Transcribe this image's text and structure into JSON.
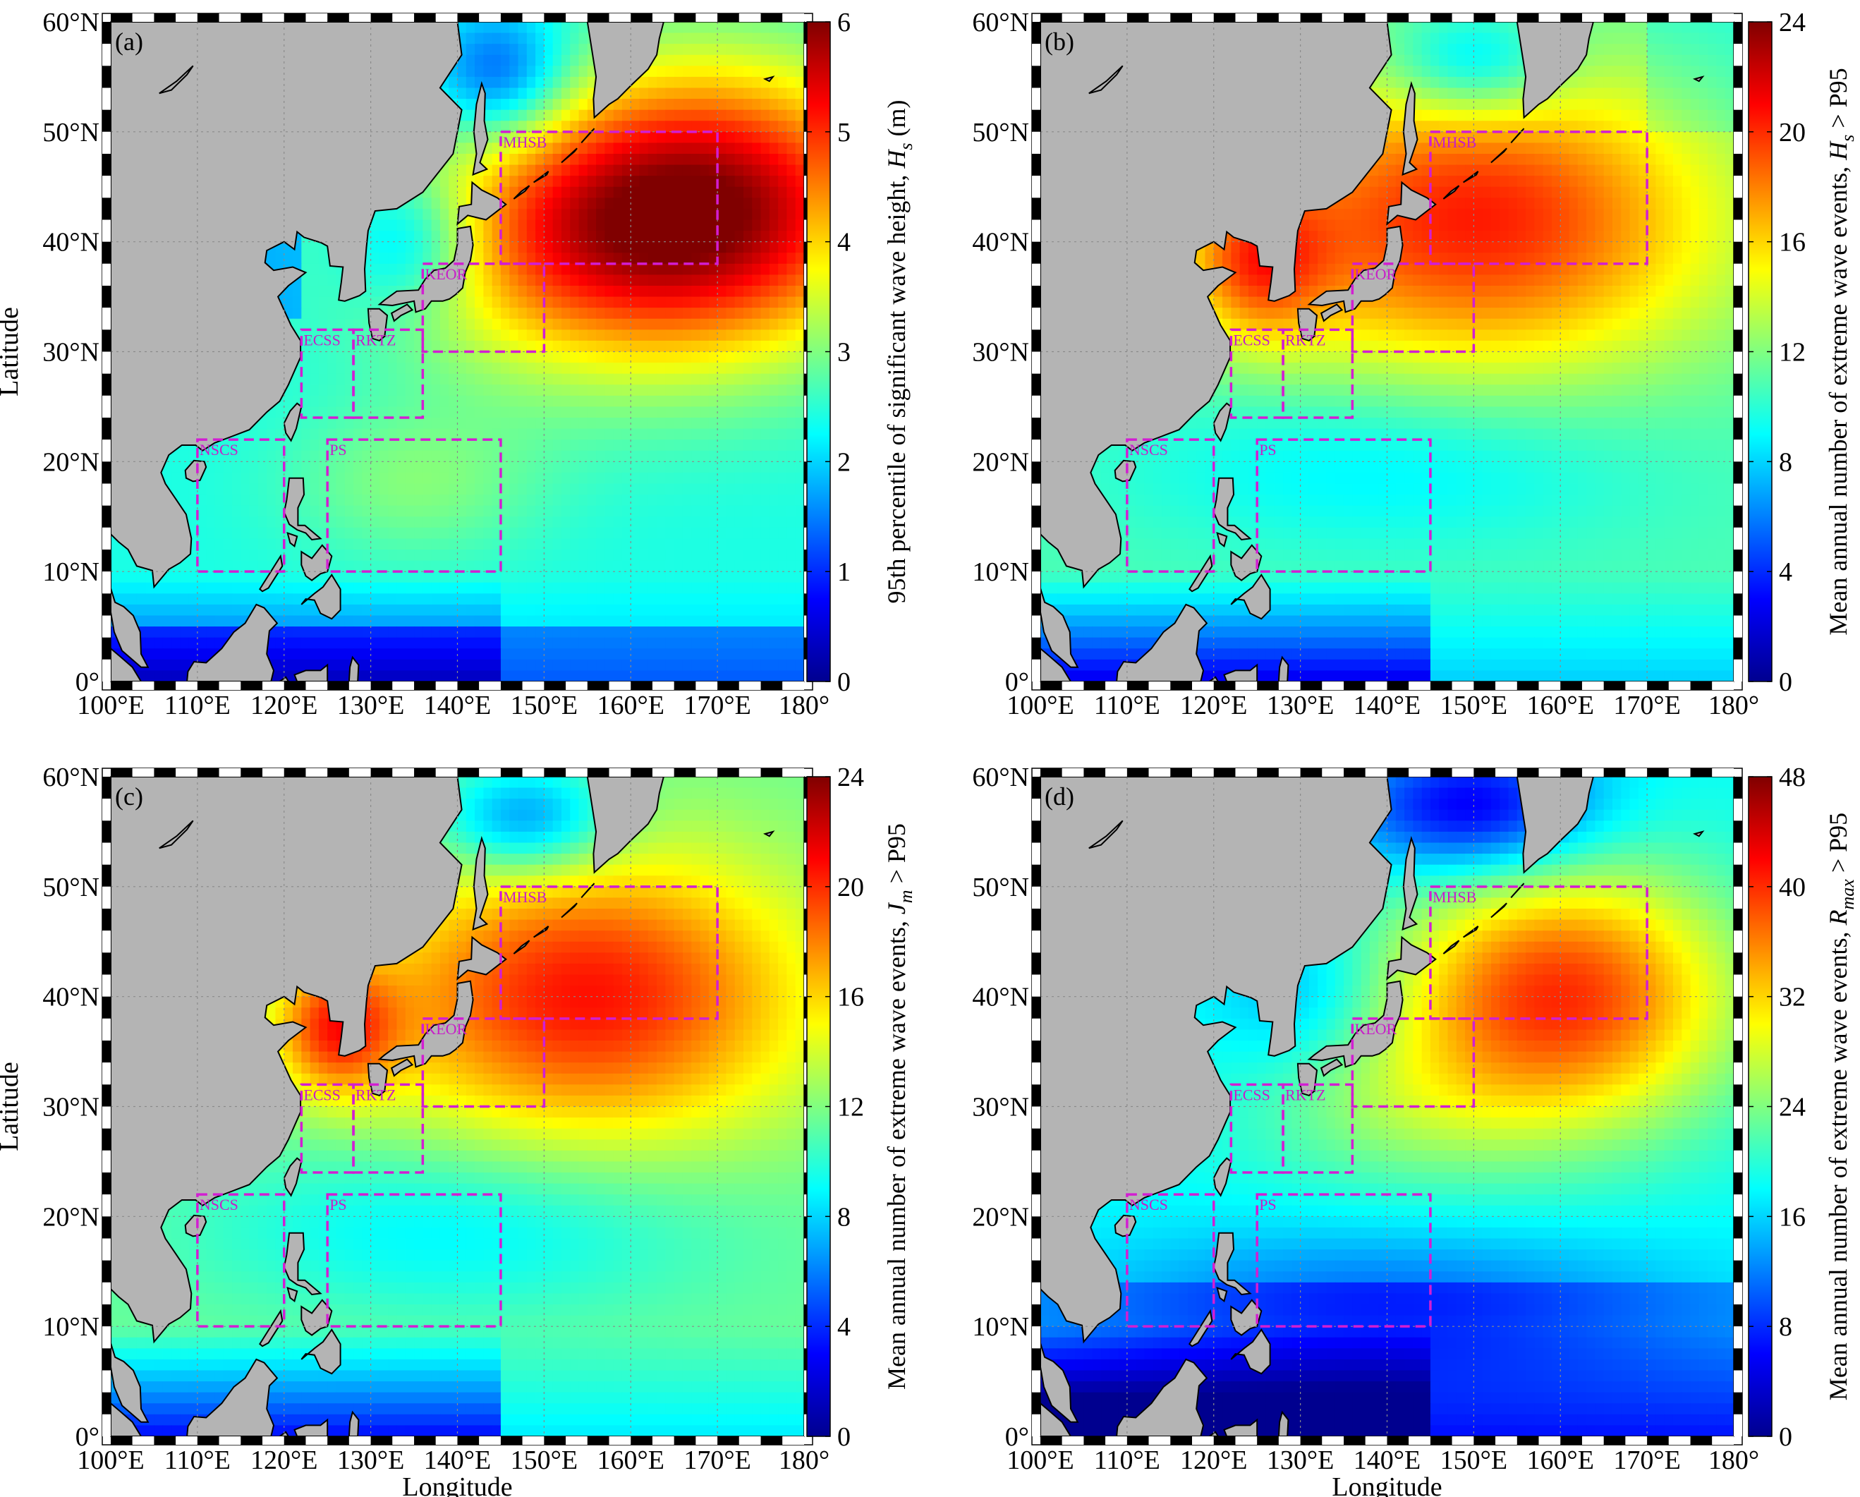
{
  "x_axis_label": "Longitude",
  "y_axis_label": "Latitude",
  "lon_ticks": [
    "100°E",
    "110°E",
    "120°E",
    "130°E",
    "140°E",
    "150°E",
    "160°E",
    "170°E",
    "180°"
  ],
  "lat_ticks": [
    "0°",
    "10°N",
    "20°N",
    "30°N",
    "40°N",
    "50°N",
    "60°N"
  ],
  "regions": [
    {
      "name": "MHSB",
      "lon": [
        145,
        170
      ],
      "lat": [
        38,
        50
      ]
    },
    {
      "name": "KEOR",
      "lon": [
        136,
        150
      ],
      "lat": [
        30,
        38
      ]
    },
    {
      "name": "ECSS",
      "lon": [
        122,
        128
      ],
      "lat": [
        24,
        32
      ]
    },
    {
      "name": "RKTZ",
      "lon": [
        128,
        136
      ],
      "lat": [
        24,
        32
      ]
    },
    {
      "name": "NSCS",
      "lon": [
        110,
        120
      ],
      "lat": [
        10,
        22
      ]
    },
    {
      "name": "PS",
      "lon": [
        125,
        145
      ],
      "lat": [
        10,
        22
      ]
    }
  ],
  "colors": {
    "land": "#b4b4b4",
    "region_box": "#d21ed2",
    "colormap": [
      "#00008f",
      "#0000ff",
      "#0080ff",
      "#00ffff",
      "#80ff80",
      "#ffff00",
      "#ff8000",
      "#ff0000",
      "#800000"
    ]
  },
  "panels": [
    {
      "label": "(a)",
      "colorbar_max": 6,
      "colorbar_ticks": [
        "0",
        "1",
        "2",
        "3",
        "4",
        "5",
        "6"
      ],
      "colorbar_title": "95th percentile of significant wave height, ",
      "symbol": "H",
      "subscript": "s",
      "suffix": " (m)",
      "field": "a"
    },
    {
      "label": "(b)",
      "colorbar_max": 24,
      "colorbar_ticks": [
        "0",
        "4",
        "8",
        "12",
        "16",
        "20",
        "24"
      ],
      "colorbar_title": "Mean annual number of extreme wave events, ",
      "symbol": "H",
      "subscript": "s",
      "suffix": " > P95",
      "field": "b"
    },
    {
      "label": "(c)",
      "colorbar_max": 24,
      "colorbar_ticks": [
        "0",
        "4",
        "8",
        "12",
        "16",
        "20",
        "24"
      ],
      "colorbar_title": "Mean annual number of extreme wave events, ",
      "symbol": "J",
      "subscript": "m",
      "suffix": " > P95",
      "field": "c"
    },
    {
      "label": "(d)",
      "colorbar_max": 48,
      "colorbar_ticks": [
        "0",
        "8",
        "16",
        "24",
        "32",
        "40",
        "48"
      ],
      "colorbar_title": "Mean annual number of extreme wave events, ",
      "symbol": "R",
      "subscript": "max",
      "suffix": " > P95",
      "field": "d"
    }
  ]
}
